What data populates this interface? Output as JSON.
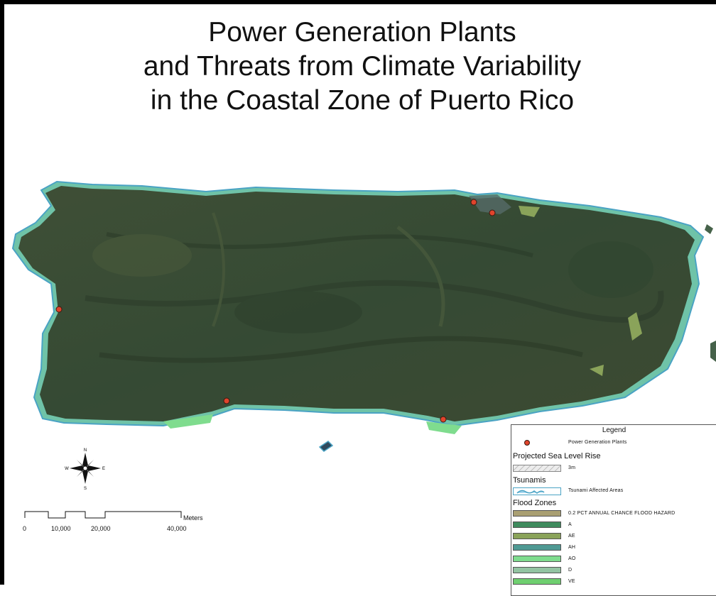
{
  "title_lines": [
    "Power Generation Plants",
    "and Threats from Climate Variability",
    "in the Coastal Zone of Puerto Rico"
  ],
  "compass": {
    "n": "N",
    "s": "S",
    "e": "E",
    "w": "W"
  },
  "scale_bar": {
    "unit": "Meters",
    "labels": [
      "0",
      "10,000",
      "20,000",
      "40,000"
    ]
  },
  "legend": {
    "title": "Legend",
    "power_plants_label": "Power Generation Plants",
    "power_plant_color": "#e0442c",
    "sea_level_heading": "Projected Sea Level Rise",
    "sea_level_item": "3m",
    "tsunami_heading": "Tsunamis",
    "tsunami_item": "Tsunami Affected Areas",
    "tsunami_color": "#9fd3ec",
    "flood_heading": "Flood Zones",
    "flood_zones": [
      {
        "label": "0.2 PCT ANNUAL CHANCE FLOOD HAZARD",
        "color": "#a99f72"
      },
      {
        "label": "A",
        "color": "#3f8b5e"
      },
      {
        "label": "AE",
        "color": "#8aa35a"
      },
      {
        "label": "AH",
        "color": "#4f9a94"
      },
      {
        "label": "AO",
        "color": "#7fdc8e"
      },
      {
        "label": "D",
        "color": "#93c4a2"
      },
      {
        "label": "VE",
        "color": "#6fcf70"
      }
    ]
  }
}
